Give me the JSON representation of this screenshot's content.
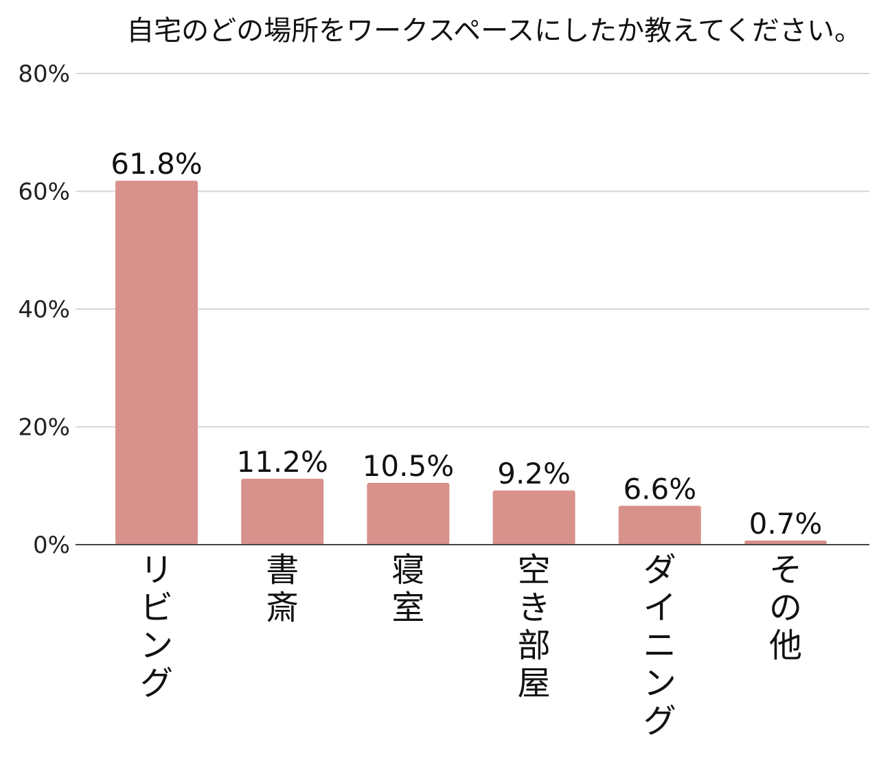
{
  "chart_data": {
    "type": "bar",
    "title": "自宅のどの場所をワークスペースにしたか教えてください。",
    "categories": [
      "リビング",
      "書斎",
      "寝室",
      "空き部屋",
      "ダイニング",
      "その他"
    ],
    "values": [
      61.8,
      11.2,
      10.5,
      9.2,
      6.6,
      0.7
    ],
    "data_labels": [
      "61.8%",
      "11.2%",
      "10.5%",
      "9.2%",
      "6.6%",
      "0.7%"
    ],
    "ylim": [
      0,
      80
    ],
    "yticks": [
      0,
      20,
      40,
      60,
      80
    ],
    "ytick_labels": [
      "0%",
      "20%",
      "40%",
      "60%",
      "80%"
    ],
    "xlabel": "",
    "ylabel": "",
    "grid": true,
    "legend": "none",
    "bar_color": "#d9918b"
  }
}
